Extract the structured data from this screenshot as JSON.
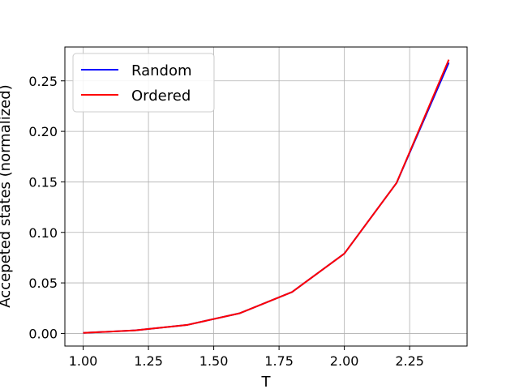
{
  "chart_data": {
    "type": "line",
    "title": "",
    "xlabel": "T",
    "ylabel": "Accepeted states (normalized)",
    "x": [
      1.0,
      1.2,
      1.4,
      1.6,
      1.8,
      2.0,
      2.2,
      2.4
    ],
    "xlim": [
      0.93,
      2.47
    ],
    "ylim": [
      -0.0125,
      0.2835
    ],
    "xticks": [
      1.0,
      1.25,
      1.5,
      1.75,
      2.0,
      2.25
    ],
    "xtick_labels": [
      "1.00",
      "1.25",
      "1.50",
      "1.75",
      "2.00",
      "2.25"
    ],
    "yticks": [
      0.0,
      0.05,
      0.1,
      0.15,
      0.2,
      0.25
    ],
    "ytick_labels": [
      "0.00",
      "0.05",
      "0.10",
      "0.15",
      "0.20",
      "0.25"
    ],
    "grid": true,
    "legend_position": "top-left",
    "series": [
      {
        "name": "Random",
        "color": "#0000ff",
        "values": [
          0.0005,
          0.003,
          0.0085,
          0.02,
          0.041,
          0.079,
          0.149,
          0.268
        ]
      },
      {
        "name": "Ordered",
        "color": "#ff0000",
        "values": [
          0.0005,
          0.003,
          0.0085,
          0.02,
          0.041,
          0.079,
          0.149,
          0.271
        ]
      }
    ]
  }
}
